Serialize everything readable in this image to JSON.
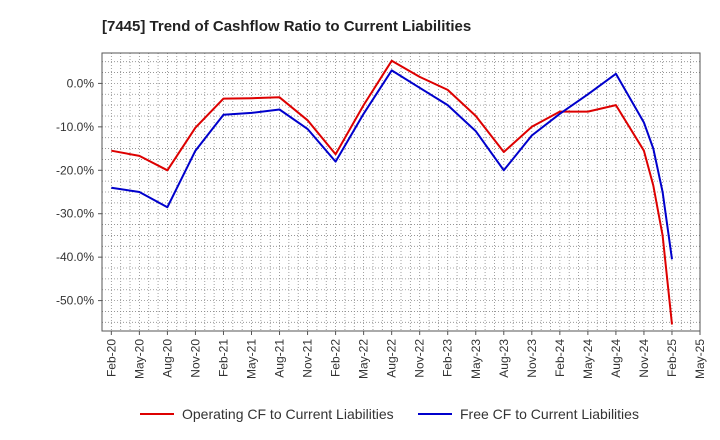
{
  "chart_data": {
    "type": "line",
    "title": "[7445]  Trend of Cashflow Ratio to Current Liabilities",
    "xlabel": "",
    "ylabel": "",
    "x_ticks": [
      "Feb-20",
      "May-20",
      "Aug-20",
      "Nov-20",
      "Feb-21",
      "May-21",
      "Aug-21",
      "Nov-21",
      "Feb-22",
      "May-22",
      "Aug-22",
      "Nov-22",
      "Feb-23",
      "May-23",
      "Aug-23",
      "Nov-23",
      "Feb-24",
      "May-24",
      "Aug-24",
      "Nov-24",
      "Feb-25",
      "May-25"
    ],
    "y_ticks": [
      "0.0%",
      "-10.0%",
      "-20.0%",
      "-30.0%",
      "-40.0%",
      "-50.0%"
    ],
    "y_tick_values": [
      0,
      -10,
      -20,
      -30,
      -40,
      -50
    ],
    "ylim": [
      -57,
      7
    ],
    "grid": true,
    "legend_position": "bottom",
    "series": [
      {
        "name": "Operating CF to Current Liabilities",
        "color": "#dd0000",
        "points": [
          [
            "Feb-20",
            -15.5
          ],
          [
            "May-20",
            -16.7
          ],
          [
            "Aug-20",
            -20.0
          ],
          [
            "Nov-20",
            -10.2
          ],
          [
            "Feb-21",
            -3.5
          ],
          [
            "May-21",
            -3.4
          ],
          [
            "Aug-21",
            -3.2
          ],
          [
            "Nov-21",
            -8.5
          ],
          [
            "Feb-22",
            -16.3
          ],
          [
            "May-22",
            -5.0
          ],
          [
            "Aug-22",
            5.2
          ],
          [
            "Nov-22",
            1.5
          ],
          [
            "Feb-23",
            -1.5
          ],
          [
            "May-23",
            -7.5
          ],
          [
            "Aug-23",
            -15.8
          ],
          [
            "Nov-23",
            -10.0
          ],
          [
            "Feb-24",
            -6.5
          ],
          [
            "May-24",
            -6.5
          ],
          [
            "Aug-24",
            -5.0
          ],
          [
            "Nov-24",
            -15.5
          ],
          [
            "Dec-24",
            -23.5
          ],
          [
            "Jan-25",
            -35.0
          ],
          [
            "Feb-25",
            -55.5
          ]
        ]
      },
      {
        "name": "Free CF to Current Liabilities",
        "color": "#0000cc",
        "points": [
          [
            "Feb-20",
            -24.0
          ],
          [
            "May-20",
            -25.0
          ],
          [
            "Aug-20",
            -28.5
          ],
          [
            "Nov-20",
            -15.5
          ],
          [
            "Feb-21",
            -7.2
          ],
          [
            "May-21",
            -6.8
          ],
          [
            "Aug-21",
            -6.0
          ],
          [
            "Nov-21",
            -10.5
          ],
          [
            "Feb-22",
            -18.0
          ],
          [
            "May-22",
            -7.0
          ],
          [
            "Aug-22",
            3.0
          ],
          [
            "Nov-22",
            -1.0
          ],
          [
            "Feb-23",
            -5.0
          ],
          [
            "May-23",
            -11.0
          ],
          [
            "Aug-23",
            -20.0
          ],
          [
            "Nov-23",
            -12.0
          ],
          [
            "Feb-24",
            -7.0
          ],
          [
            "May-24",
            -2.5
          ],
          [
            "Aug-24",
            2.2
          ],
          [
            "Nov-24",
            -9.0
          ],
          [
            "Dec-24",
            -15.0
          ],
          [
            "Jan-25",
            -25.0
          ],
          [
            "Feb-25",
            -40.5
          ]
        ]
      }
    ]
  }
}
